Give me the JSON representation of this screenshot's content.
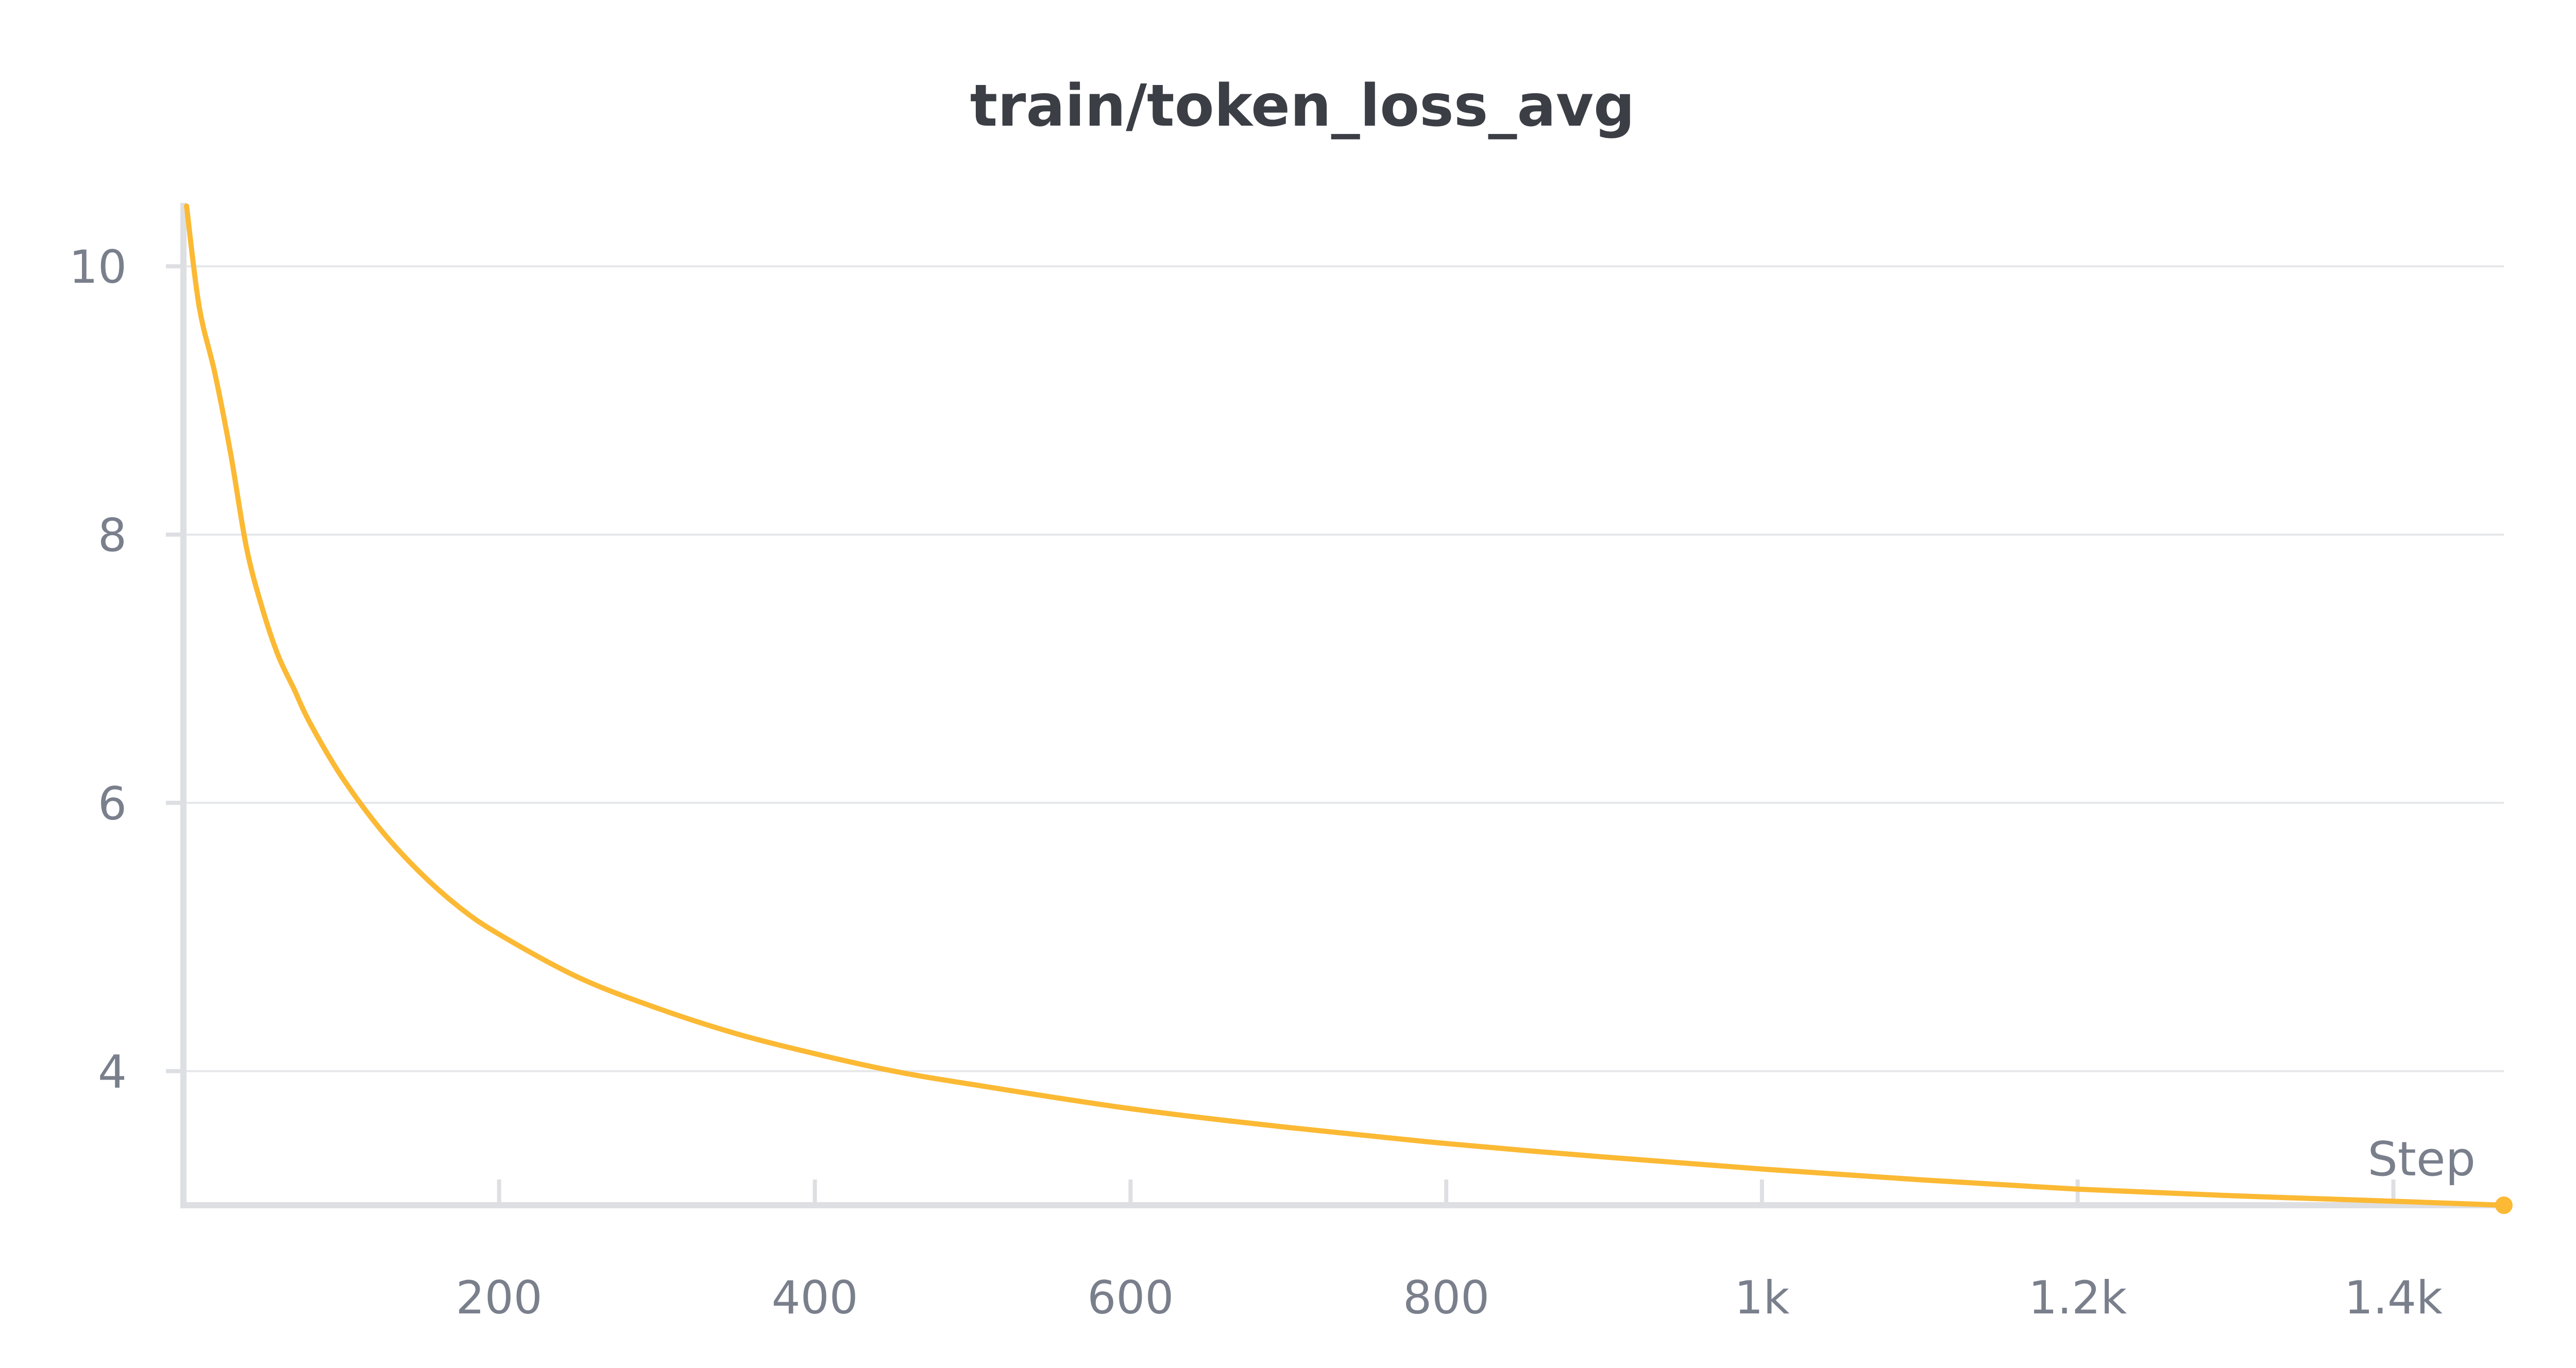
{
  "chart_data": {
    "type": "line",
    "title": "train/token_loss_avg",
    "xlabel": "Step",
    "ylabel": "",
    "xlim": [
      0,
      1470
    ],
    "ylim": [
      3.0,
      10.45
    ],
    "xticks": [
      200,
      400,
      600,
      800,
      1000,
      1200,
      1400
    ],
    "xtick_labels": [
      "200",
      "400",
      "600",
      "800",
      "1k",
      "1.2k",
      "1.4k"
    ],
    "yticks": [
      4,
      6,
      8,
      10
    ],
    "ytick_labels": [
      "4",
      "6",
      "8",
      "10"
    ],
    "grid": true,
    "series": [
      {
        "color": "#fbb934",
        "x": [
          2,
          10,
          20,
          30,
          40,
          50,
          60,
          70,
          80,
          100,
          125,
          150,
          175,
          200,
          250,
          300,
          350,
          400,
          450,
          500,
          600,
          700,
          800,
          900,
          1000,
          1100,
          1200,
          1300,
          1400,
          1470
        ],
        "y": [
          10.45,
          9.7,
          9.2,
          8.6,
          7.9,
          7.45,
          7.1,
          6.85,
          6.6,
          6.2,
          5.8,
          5.48,
          5.22,
          5.02,
          4.7,
          4.47,
          4.28,
          4.13,
          4.0,
          3.9,
          3.72,
          3.58,
          3.46,
          3.36,
          3.27,
          3.19,
          3.12,
          3.07,
          3.03,
          3.0
        ]
      }
    ]
  }
}
